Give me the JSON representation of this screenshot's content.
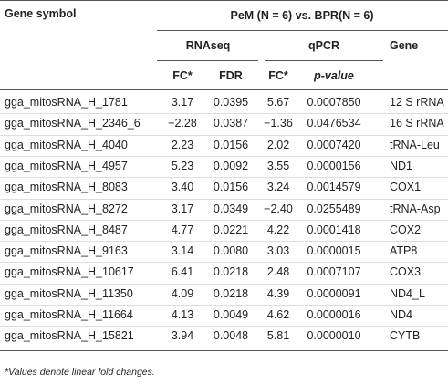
{
  "header": {
    "gene_symbol": "Gene symbol",
    "comparison": "PeM (N = 6) vs. BPR(N = 6)",
    "rnaseq": "RNAseq",
    "qpcr": "qPCR",
    "gene": "Gene",
    "fc_rnaseq": "FC*",
    "fdr": "FDR",
    "fc_qpcr": "FC*",
    "p_value": "p-value"
  },
  "table": {
    "rows": [
      [
        "gga_mitosRNA_H_1781",
        "3.17",
        "0.0395",
        "5.67",
        "0.0007850",
        "12 S rRNA"
      ],
      [
        "gga_mitosRNA_H_2346_6",
        "−2.28",
        "0.0387",
        "−1.36",
        "0.0476534",
        "16 S rRNA"
      ],
      [
        "gga_mitosRNA_H_4040",
        "2.23",
        "0.0156",
        "2.02",
        "0.0007420",
        "tRNA-Leu"
      ],
      [
        "gga_mitosRNA_H_4957",
        "5.23",
        "0.0092",
        "3.55",
        "0.0000156",
        "ND1"
      ],
      [
        "gga_mitosRNA_H_8083",
        "3.40",
        "0.0156",
        "3.24",
        "0.0014579",
        "COX1"
      ],
      [
        "gga_mitosRNA_H_8272",
        "3.17",
        "0.0349",
        "−2.40",
        "0.0255489",
        "tRNA-Asp"
      ],
      [
        "gga_mitosRNA_H_8487",
        "4.77",
        "0.0221",
        "4.22",
        "0.0001418",
        "COX2"
      ],
      [
        "gga_mitosRNA_H_9163",
        "3.14",
        "0.0080",
        "3.03",
        "0.0000015",
        "ATP8"
      ],
      [
        "gga_mitosRNA_H_10617",
        "6.41",
        "0.0218",
        "2.48",
        "0.0007107",
        "COX3"
      ],
      [
        "gga_mitosRNA_H_11350",
        "4.09",
        "0.0218",
        "4.39",
        "0.0000091",
        "ND4_L"
      ],
      [
        "gga_mitosRNA_H_11664",
        "4.13",
        "0.0049",
        "4.62",
        "0.0000016",
        "ND4"
      ],
      [
        "gga_mitosRNA_H_15821",
        "3.94",
        "0.0048",
        "5.81",
        "0.0000010",
        "CYTB"
      ]
    ]
  },
  "footnote": "*Values denote linear fold changes."
}
